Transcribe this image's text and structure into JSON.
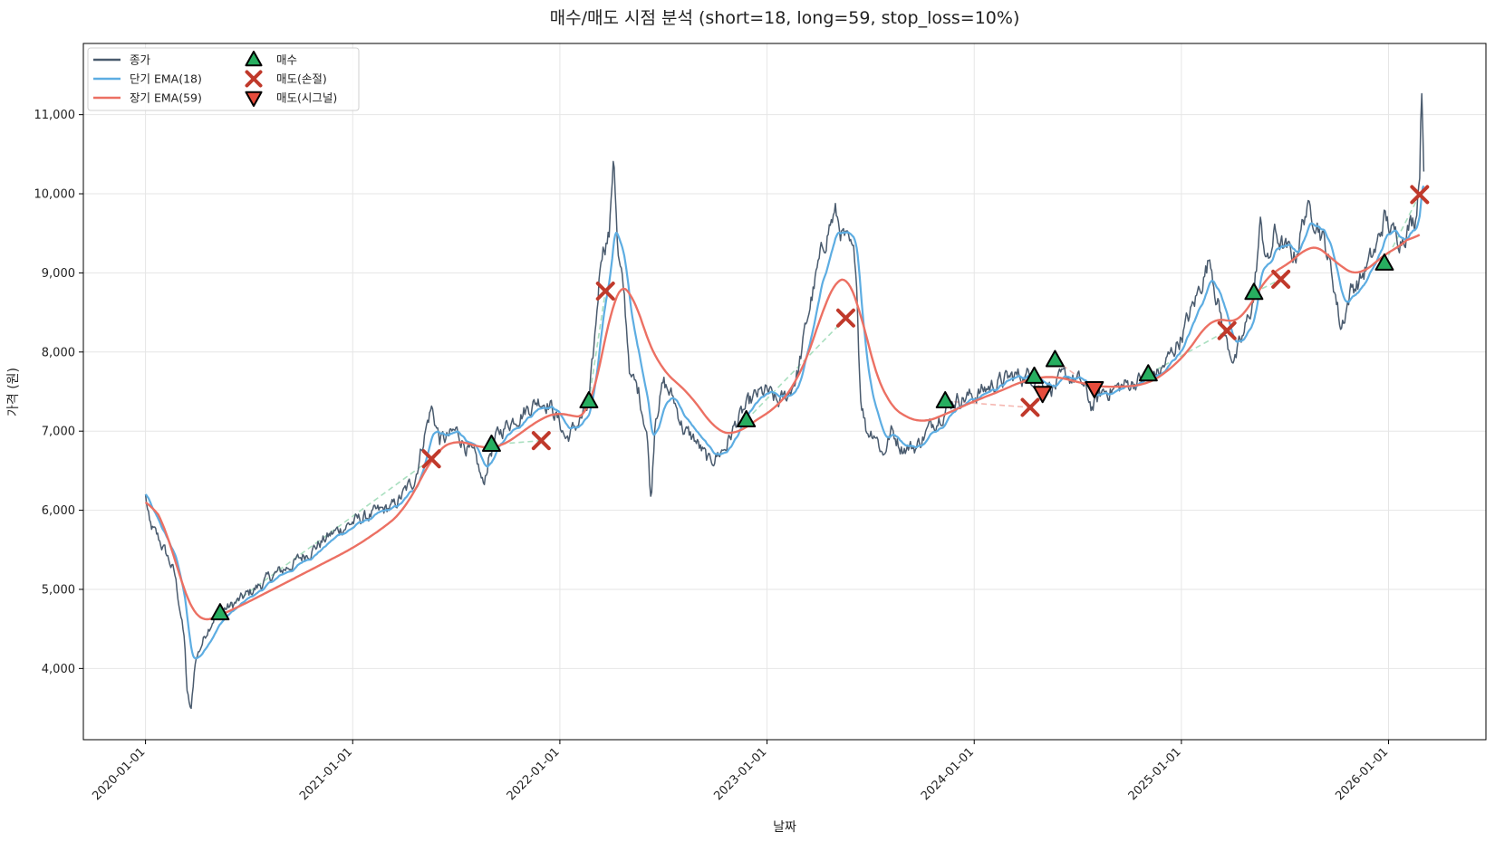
{
  "chart_data": {
    "type": "line",
    "title": "매수/매도 시점 분석 (short=18, long=59, stop_loss=10%)",
    "xlabel": "날짜",
    "ylabel": "가격 (원)",
    "xlim": [
      2019.7,
      2026.47
    ],
    "ylim": [
      3100,
      11900
    ],
    "x_ticks": [
      2020,
      2021,
      2022,
      2023,
      2024,
      2025,
      2026
    ],
    "x_tick_labels": [
      "2020-01-01",
      "2021-01-01",
      "2022-01-01",
      "2023-01-01",
      "2024-01-01",
      "2025-01-01",
      "2026-01-01"
    ],
    "y_ticks": [
      4000,
      5000,
      6000,
      7000,
      8000,
      9000,
      10000,
      11000
    ],
    "y_tick_labels": [
      "4,000",
      "5,000",
      "6,000",
      "7,000",
      "8,000",
      "9,000",
      "10,000",
      "11,000"
    ],
    "grid": true,
    "legend": {
      "placement": "top-left",
      "items": [
        {
          "label": "종가",
          "kind": "line",
          "color": "#4a5b6e"
        },
        {
          "label": "단기 EMA(18)",
          "kind": "line",
          "color": "#5dade2"
        },
        {
          "label": "장기 EMA(59)",
          "kind": "line",
          "color": "#ec7063"
        },
        {
          "label": "매수",
          "kind": "triangle-up",
          "color": "#27ae60"
        },
        {
          "label": "매도(손절)",
          "kind": "x",
          "color": "#c0392b"
        },
        {
          "label": "매도(시그널)",
          "kind": "triangle-down",
          "color": "#e74c3c"
        }
      ]
    },
    "colors": {
      "close": "#4a5b6e",
      "ema_short": "#5dade2",
      "ema_long": "#ec7063",
      "buy": "#27ae60",
      "stop_loss": "#c0392b",
      "signal_sell": "#e74c3c",
      "win_trade": "#a9dfbf",
      "loss_trade": "#f5b7b1"
    },
    "close_keypoints": [
      [
        2020.0,
        6200
      ],
      [
        2020.02,
        5800
      ],
      [
        2020.06,
        5650
      ],
      [
        2020.1,
        5450
      ],
      [
        2020.14,
        5200
      ],
      [
        2020.17,
        4700
      ],
      [
        2020.19,
        4300
      ],
      [
        2020.2,
        3700
      ],
      [
        2020.22,
        3450
      ],
      [
        2020.24,
        4100
      ],
      [
        2020.27,
        4300
      ],
      [
        2020.3,
        4500
      ],
      [
        2020.33,
        4650
      ],
      [
        2020.38,
        4750
      ],
      [
        2020.42,
        4800
      ],
      [
        2020.5,
        4950
      ],
      [
        2020.6,
        5150
      ],
      [
        2020.7,
        5300
      ],
      [
        2020.8,
        5500
      ],
      [
        2020.9,
        5700
      ],
      [
        2021.0,
        5850
      ],
      [
        2021.1,
        5950
      ],
      [
        2021.2,
        6050
      ],
      [
        2021.3,
        6400
      ],
      [
        2021.35,
        7000
      ],
      [
        2021.38,
        7300
      ],
      [
        2021.42,
        6900
      ],
      [
        2021.45,
        6900
      ],
      [
        2021.5,
        7000
      ],
      [
        2021.55,
        6800
      ],
      [
        2021.6,
        6600
      ],
      [
        2021.63,
        6300
      ],
      [
        2021.66,
        6700
      ],
      [
        2021.7,
        6950
      ],
      [
        2021.75,
        7100
      ],
      [
        2021.8,
        7200
      ],
      [
        2021.85,
        7300
      ],
      [
        2021.9,
        7400
      ],
      [
        2021.95,
        7350
      ],
      [
        2022.0,
        7100
      ],
      [
        2022.03,
        6900
      ],
      [
        2022.06,
        7000
      ],
      [
        2022.1,
        7150
      ],
      [
        2022.14,
        7300
      ],
      [
        2022.17,
        8200
      ],
      [
        2022.2,
        9300
      ],
      [
        2022.24,
        9500
      ],
      [
        2022.26,
        10600
      ],
      [
        2022.28,
        9200
      ],
      [
        2022.31,
        8700
      ],
      [
        2022.34,
        7700
      ],
      [
        2022.38,
        7500
      ],
      [
        2022.42,
        7000
      ],
      [
        2022.44,
        6100
      ],
      [
        2022.46,
        7200
      ],
      [
        2022.5,
        7600
      ],
      [
        2022.55,
        7400
      ],
      [
        2022.6,
        7000
      ],
      [
        2022.65,
        6900
      ],
      [
        2022.72,
        6600
      ],
      [
        2022.8,
        6800
      ],
      [
        2022.85,
        7100
      ],
      [
        2022.9,
        7300
      ],
      [
        2022.95,
        7450
      ],
      [
        2023.0,
        7500
      ],
      [
        2023.05,
        7350
      ],
      [
        2023.1,
        7450
      ],
      [
        2023.15,
        7750
      ],
      [
        2023.2,
        8500
      ],
      [
        2023.25,
        9100
      ],
      [
        2023.3,
        9600
      ],
      [
        2023.33,
        9750
      ],
      [
        2023.36,
        9500
      ],
      [
        2023.4,
        9300
      ],
      [
        2023.43,
        9100
      ],
      [
        2023.45,
        7500
      ],
      [
        2023.48,
        7000
      ],
      [
        2023.52,
        7000
      ],
      [
        2023.56,
        6700
      ],
      [
        2023.6,
        7000
      ],
      [
        2023.65,
        6800
      ],
      [
        2023.72,
        6800
      ],
      [
        2023.8,
        7100
      ],
      [
        2023.9,
        7400
      ],
      [
        2024.0,
        7450
      ],
      [
        2024.1,
        7600
      ],
      [
        2024.2,
        7700
      ],
      [
        2024.3,
        7700
      ],
      [
        2024.38,
        7550
      ],
      [
        2024.45,
        7700
      ],
      [
        2024.52,
        7600
      ],
      [
        2024.57,
        7300
      ],
      [
        2024.62,
        7500
      ],
      [
        2024.7,
        7550
      ],
      [
        2024.8,
        7650
      ],
      [
        2024.9,
        7750
      ],
      [
        2025.0,
        8200
      ],
      [
        2025.06,
        8600
      ],
      [
        2025.1,
        8900
      ],
      [
        2025.14,
        9200
      ],
      [
        2025.17,
        8700
      ],
      [
        2025.22,
        8100
      ],
      [
        2025.26,
        7900
      ],
      [
        2025.3,
        8200
      ],
      [
        2025.35,
        8700
      ],
      [
        2025.38,
        9600
      ],
      [
        2025.42,
        9100
      ],
      [
        2025.45,
        9500
      ],
      [
        2025.5,
        9300
      ],
      [
        2025.55,
        9200
      ],
      [
        2025.6,
        9800
      ],
      [
        2025.65,
        9700
      ],
      [
        2025.7,
        9300
      ],
      [
        2025.74,
        8800
      ],
      [
        2025.77,
        8300
      ],
      [
        2025.82,
        8800
      ],
      [
        2025.86,
        8900
      ],
      [
        2025.9,
        9100
      ],
      [
        2025.94,
        9300
      ],
      [
        2025.98,
        9700
      ],
      [
        2026.02,
        9500
      ],
      [
        2026.06,
        9450
      ],
      [
        2026.1,
        9600
      ],
      [
        2026.13,
        9700
      ],
      [
        2026.15,
        10300
      ],
      [
        2026.16,
        11400
      ],
      [
        2026.17,
        10400
      ]
    ],
    "ema_long_keypoints": [
      [
        2020.0,
        6200
      ],
      [
        2020.04,
        6080
      ],
      [
        2020.08,
        5900
      ],
      [
        2020.12,
        5600
      ],
      [
        2020.16,
        5200
      ],
      [
        2020.2,
        4850
      ],
      [
        2020.24,
        4620
      ],
      [
        2020.28,
        4580
      ],
      [
        2020.34,
        4650
      ],
      [
        2020.45,
        4780
      ],
      [
        2020.6,
        4980
      ],
      [
        2020.8,
        5250
      ],
      [
        2021.0,
        5520
      ],
      [
        2021.15,
        5780
      ],
      [
        2021.25,
        6000
      ],
      [
        2021.33,
        6400
      ],
      [
        2021.4,
        6750
      ],
      [
        2021.5,
        6900
      ],
      [
        2021.6,
        6800
      ],
      [
        2021.7,
        6780
      ],
      [
        2021.8,
        6950
      ],
      [
        2021.9,
        7150
      ],
      [
        2022.0,
        7250
      ],
      [
        2022.1,
        7150
      ],
      [
        2022.15,
        7200
      ],
      [
        2022.22,
        8200
      ],
      [
        2022.26,
        8800
      ],
      [
        2022.33,
        8950
      ],
      [
        2022.4,
        8300
      ],
      [
        2022.48,
        7800
      ],
      [
        2022.55,
        7650
      ],
      [
        2022.65,
        7400
      ],
      [
        2022.75,
        7000
      ],
      [
        2022.85,
        6950
      ],
      [
        2022.95,
        7150
      ],
      [
        2023.05,
        7300
      ],
      [
        2023.15,
        7650
      ],
      [
        2023.22,
        8100
      ],
      [
        2023.3,
        8800
      ],
      [
        2023.36,
        9000
      ],
      [
        2023.42,
        8900
      ],
      [
        2023.5,
        7900
      ],
      [
        2023.58,
        7350
      ],
      [
        2023.65,
        7200
      ],
      [
        2023.75,
        7100
      ],
      [
        2023.85,
        7200
      ],
      [
        2024.0,
        7380
      ],
      [
        2024.12,
        7500
      ],
      [
        2024.25,
        7650
      ],
      [
        2024.38,
        7700
      ],
      [
        2024.5,
        7620
      ],
      [
        2024.6,
        7560
      ],
      [
        2024.7,
        7560
      ],
      [
        2024.82,
        7580
      ],
      [
        2024.92,
        7720
      ],
      [
        2025.05,
        8050
      ],
      [
        2025.14,
        8450
      ],
      [
        2025.22,
        8380
      ],
      [
        2025.3,
        8400
      ],
      [
        2025.38,
        8850
      ],
      [
        2025.46,
        9050
      ],
      [
        2025.55,
        9150
      ],
      [
        2025.62,
        9400
      ],
      [
        2025.7,
        9250
      ],
      [
        2025.78,
        9050
      ],
      [
        2025.86,
        8950
      ],
      [
        2025.94,
        9150
      ],
      [
        2026.02,
        9300
      ],
      [
        2026.1,
        9400
      ],
      [
        2026.15,
        9600
      ]
    ],
    "ema_short_span": 18,
    "buys": [
      {
        "x": 2020.36,
        "y": 4700
      },
      {
        "x": 2021.67,
        "y": 6830
      },
      {
        "x": 2022.14,
        "y": 7380
      },
      {
        "x": 2022.9,
        "y": 7140
      },
      {
        "x": 2023.86,
        "y": 7380
      },
      {
        "x": 2024.29,
        "y": 7690
      },
      {
        "x": 2024.39,
        "y": 7900
      },
      {
        "x": 2024.84,
        "y": 7720
      },
      {
        "x": 2025.35,
        "y": 8750
      },
      {
        "x": 2025.98,
        "y": 9120
      }
    ],
    "stop_loss_sells": [
      {
        "x": 2021.38,
        "y": 6650
      },
      {
        "x": 2021.91,
        "y": 6880
      },
      {
        "x": 2022.22,
        "y": 8770
      },
      {
        "x": 2023.38,
        "y": 8430
      },
      {
        "x": 2024.27,
        "y": 7300
      },
      {
        "x": 2025.22,
        "y": 8270
      },
      {
        "x": 2025.48,
        "y": 8920
      },
      {
        "x": 2026.15,
        "y": 9990
      }
    ],
    "signal_sells": [
      {
        "x": 2024.33,
        "y": 7480
      },
      {
        "x": 2024.58,
        "y": 7540
      }
    ],
    "trades": [
      {
        "buy": [
          2020.36,
          4700
        ],
        "sell": [
          2021.38,
          6650
        ],
        "result": "win"
      },
      {
        "buy": [
          2021.67,
          6830
        ],
        "sell": [
          2021.91,
          6880
        ],
        "result": "win"
      },
      {
        "buy": [
          2022.14,
          7380
        ],
        "sell": [
          2022.22,
          8770
        ],
        "result": "win"
      },
      {
        "buy": [
          2022.9,
          7140
        ],
        "sell": [
          2023.38,
          8430
        ],
        "result": "win"
      },
      {
        "buy": [
          2023.86,
          7380
        ],
        "sell": [
          2024.27,
          7300
        ],
        "result": "loss"
      },
      {
        "buy": [
          2024.29,
          7690
        ],
        "sell": [
          2024.33,
          7480
        ],
        "result": "loss"
      },
      {
        "buy": [
          2024.39,
          7900
        ],
        "sell": [
          2024.58,
          7540
        ],
        "result": "loss"
      },
      {
        "buy": [
          2024.84,
          7720
        ],
        "sell": [
          2025.22,
          8270
        ],
        "result": "win"
      },
      {
        "buy": [
          2025.35,
          8750
        ],
        "sell": [
          2025.48,
          8920
        ],
        "result": "win"
      },
      {
        "buy": [
          2025.98,
          9120
        ],
        "sell": [
          2026.15,
          9990
        ],
        "result": "win"
      }
    ]
  }
}
